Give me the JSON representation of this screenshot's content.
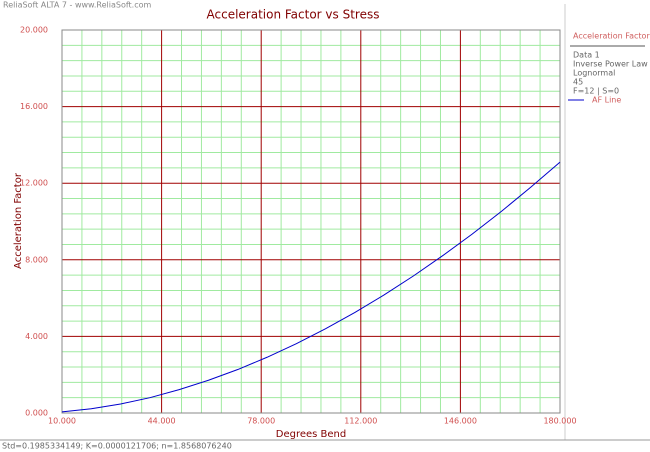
{
  "app_title": "ReliaSoft ALTA 7 - www.ReliaSoft.com",
  "chart_data": {
    "type": "line",
    "title": "Acceleration Factor vs Stress",
    "x_label": "Degrees Bend",
    "y_label": "Acceleration Factor",
    "x": [
      10,
      20,
      30,
      40,
      50,
      60,
      70,
      80,
      90,
      100,
      110,
      120,
      130,
      140,
      150,
      160,
      170,
      180
    ],
    "series": [
      {
        "name": "AF Line",
        "color": "#0000cc",
        "values": [
          0.06,
          0.22,
          0.47,
          0.8,
          1.22,
          1.71,
          2.27,
          2.91,
          3.62,
          4.4,
          5.25,
          6.17,
          7.16,
          8.22,
          9.34,
          10.53,
          11.79,
          13.1
        ]
      }
    ],
    "xlim": [
      10,
      180
    ],
    "xticks": [
      {
        "value": 10,
        "label": "10.000"
      },
      {
        "value": 44,
        "label": "44.000"
      },
      {
        "value": 78,
        "label": "78.000"
      },
      {
        "value": 112,
        "label": "112.000"
      },
      {
        "value": 146,
        "label": "146.000"
      },
      {
        "value": 180,
        "label": "180.000"
      }
    ],
    "ylim": [
      0,
      20
    ],
    "yticks": [
      {
        "value": 0,
        "label": "0.000"
      },
      {
        "value": 4,
        "label": "4.000"
      },
      {
        "value": 8,
        "label": "8.000"
      },
      {
        "value": 12,
        "label": "12.000"
      },
      {
        "value": 16,
        "label": "16.000"
      },
      {
        "value": 20,
        "label": "20.000"
      }
    ],
    "grid": true,
    "major_grid_color": "#a00000",
    "minor_grid_color": "#a0eaa0",
    "legend_title": "Acceleration Factor",
    "legend_info": [
      "Data 1",
      "Inverse Power Law",
      "Lognormal",
      "45",
      "F=12 | S=0"
    ]
  },
  "status": "Std=0.1985334149; K=0.0000121706; n=1.8568076240"
}
